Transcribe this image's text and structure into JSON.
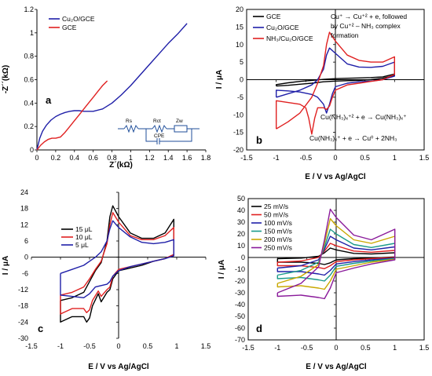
{
  "chart_data": [
    {
      "id": "a",
      "type": "line",
      "panel_label": "a",
      "xlabel": "Z´(kΩ)",
      "ylabel": "-Z´´(kΩ)",
      "xlim": [
        0,
        1.8
      ],
      "ylim": [
        0,
        1.2
      ],
      "xticks": [
        "0",
        "0.2",
        "0.4",
        "0.6",
        "0.8",
        "1",
        "1.2",
        "1.4",
        "1.6",
        "1.8"
      ],
      "yticks": [
        "0",
        "0.2",
        "0.4",
        "0.6",
        "0.8",
        "1",
        "1.2"
      ],
      "legend_position": "top-left",
      "grid": false,
      "circuit_labels": [
        "Rs",
        "Rct",
        "Zw",
        "CPE"
      ],
      "series": [
        {
          "name": "Cu₂O/GCE",
          "color": "#1f1fa8",
          "x": [
            0,
            0.03,
            0.06,
            0.1,
            0.15,
            0.2,
            0.25,
            0.3,
            0.35,
            0.4,
            0.45,
            0.5,
            0.55,
            0.6,
            0.7,
            0.8,
            0.9,
            1.0,
            1.1,
            1.2,
            1.3,
            1.4,
            1.5,
            1.6
          ],
          "y": [
            0,
            0.1,
            0.16,
            0.21,
            0.255,
            0.285,
            0.305,
            0.32,
            0.33,
            0.335,
            0.335,
            0.33,
            0.33,
            0.33,
            0.35,
            0.4,
            0.47,
            0.55,
            0.64,
            0.73,
            0.82,
            0.91,
            0.99,
            1.08
          ]
        },
        {
          "name": "GCE",
          "color": "#e02020",
          "x": [
            0,
            0.04,
            0.08,
            0.12,
            0.16,
            0.2,
            0.25,
            0.3,
            0.35,
            0.4,
            0.45,
            0.5,
            0.55,
            0.6,
            0.65,
            0.7,
            0.75
          ],
          "y": [
            0,
            0.04,
            0.07,
            0.09,
            0.1,
            0.1,
            0.11,
            0.15,
            0.2,
            0.25,
            0.3,
            0.35,
            0.4,
            0.45,
            0.5,
            0.55,
            0.59
          ]
        }
      ]
    },
    {
      "id": "b",
      "type": "line",
      "panel_label": "b",
      "xlabel": "E / V vs Ag/AgCl",
      "ylabel": "I / μA",
      "xlim": [
        -1.5,
        1.5
      ],
      "ylim": [
        -20,
        20
      ],
      "xticks": [
        "-1.5",
        "-1",
        "-0.5",
        "0",
        "0.5",
        "1",
        "1.5"
      ],
      "yticks": [
        "-20",
        "-15",
        "-10",
        "-5",
        "0",
        "5",
        "10",
        "15",
        "20"
      ],
      "legend_position": "top-left",
      "grid": false,
      "annotations": [
        "Cu⁺ → Cu⁺² + e, followed",
        "by Cu⁺² – NH₃ complex",
        "formation",
        "Cu(NH₃)ₓ⁺² + e → Cu(NH₃)ₓ⁺",
        "Cu(NH₃)ₓ⁺ + e → Cu⁰ + 2NH₃"
      ],
      "series": [
        {
          "name": "GCE",
          "color": "#000000",
          "x": [
            -1.0,
            -0.8,
            -0.6,
            -0.4,
            -0.2,
            0,
            0.2,
            0.4,
            0.6,
            0.8,
            1.0,
            1.0,
            0.8,
            0.6,
            0.4,
            0.2,
            0,
            -0.2,
            -0.4,
            -0.6,
            -0.8,
            -1.0,
            -1.0
          ],
          "y": [
            -1.8,
            -1.6,
            -1.3,
            -1.0,
            -0.6,
            -0.4,
            -0.3,
            -0.2,
            0.0,
            0.4,
            1.2,
            1.6,
            0.8,
            0.6,
            0.5,
            0.4,
            0.3,
            0.1,
            -0.2,
            -0.5,
            -0.9,
            -1.4,
            -1.8
          ]
        },
        {
          "name": "Cu₂O/GCE",
          "color": "#1f1fa8",
          "x": [
            -1.0,
            -0.8,
            -0.6,
            -0.4,
            -0.3,
            -0.2,
            -0.15,
            -0.1,
            0.0,
            0.2,
            0.4,
            0.6,
            0.8,
            1.0,
            1.0,
            0.8,
            0.6,
            0.4,
            0.2,
            0.0,
            -0.05,
            -0.1,
            -0.15,
            -0.2,
            -0.3,
            -0.4,
            -0.6,
            -0.8,
            -1.0,
            -1.0
          ],
          "y": [
            -5.0,
            -4.0,
            -3.0,
            -1.5,
            0.0,
            3.0,
            7.0,
            9.0,
            7.5,
            4.5,
            3.6,
            3.5,
            3.8,
            5.0,
            1.0,
            0.0,
            -0.4,
            -0.6,
            -1.0,
            -2.0,
            -4.0,
            -7.0,
            -9.5,
            -7.0,
            -5.0,
            -4.2,
            -3.5,
            -3.2,
            -3.0,
            -5.0
          ]
        },
        {
          "name": "NH₃/Cu₂O/GCE",
          "color": "#e02020",
          "x": [
            -1.0,
            -0.8,
            -0.6,
            -0.4,
            -0.3,
            -0.2,
            -0.15,
            -0.1,
            0.0,
            0.2,
            0.4,
            0.6,
            0.8,
            1.0,
            1.0,
            0.8,
            0.6,
            0.4,
            0.2,
            0.0,
            -0.05,
            -0.1,
            -0.15,
            -0.2,
            -0.3,
            -0.35,
            -0.4,
            -0.45,
            -0.5,
            -0.6,
            -0.8,
            -1.0,
            -1.0
          ],
          "y": [
            -14.0,
            -12.0,
            -9.5,
            -5.0,
            -1.0,
            4.0,
            10.0,
            13.5,
            11.0,
            7.0,
            5.5,
            5.0,
            5.0,
            6.5,
            1.5,
            0.0,
            -0.5,
            -1.0,
            -1.5,
            -3.0,
            -5.0,
            -7.5,
            -8.5,
            -8.0,
            -8.0,
            -11.0,
            -15.5,
            -11.0,
            -8.0,
            -7.0,
            -6.5,
            -6.0,
            -14.0
          ]
        }
      ]
    },
    {
      "id": "c",
      "type": "line",
      "panel_label": "c",
      "xlabel": "E / V vs Ag/AgCl",
      "ylabel": "I / μA",
      "xlim": [
        -1.5,
        1.5
      ],
      "ylim": [
        -30,
        24
      ],
      "xticks": [
        "-1.5",
        "-1",
        "-0.5",
        "0",
        "0.5",
        "1",
        "1.5"
      ],
      "yticks": [
        "-30",
        "-24",
        "-18",
        "-12",
        "-6",
        "0",
        "6",
        "12",
        "18",
        "24"
      ],
      "legend_position": "upper-left",
      "grid": false,
      "series": [
        {
          "name": "15 μL",
          "color": "#000000",
          "x": [
            -1.0,
            -0.8,
            -0.6,
            -0.5,
            -0.4,
            -0.3,
            -0.2,
            -0.15,
            -0.1,
            0.0,
            0.2,
            0.4,
            0.6,
            0.8,
            0.95,
            0.95,
            0.8,
            0.6,
            0.4,
            0.2,
            0.0,
            -0.1,
            -0.15,
            -0.2,
            -0.3,
            -0.35,
            -0.45,
            -0.5,
            -0.55,
            -0.6,
            -0.7,
            -0.8,
            -1.0,
            -1.0
          ],
          "y": [
            -16.0,
            -15.0,
            -13.0,
            -9.0,
            -5.0,
            -2.0,
            6.0,
            15.0,
            19.0,
            15.0,
            9.0,
            7.0,
            7.0,
            9.0,
            14.0,
            1.0,
            -0.5,
            -1.5,
            -3.0,
            -4.0,
            -5.0,
            -8.0,
            -12.0,
            -13.0,
            -16.5,
            -13.5,
            -18.0,
            -22.5,
            -24.0,
            -22.0,
            -22.0,
            -22.0,
            -24.0,
            -16.0
          ]
        },
        {
          "name": "10 μL",
          "color": "#e02020",
          "x": [
            -1.0,
            -0.8,
            -0.6,
            -0.5,
            -0.4,
            -0.3,
            -0.2,
            -0.15,
            -0.1,
            0.0,
            0.2,
            0.4,
            0.6,
            0.8,
            0.95,
            0.95,
            0.8,
            0.6,
            0.4,
            0.2,
            0.0,
            -0.1,
            -0.15,
            -0.2,
            -0.3,
            -0.35,
            -0.45,
            -0.5,
            -0.55,
            -0.6,
            -0.8,
            -1.0,
            -1.0
          ],
          "y": [
            -14.0,
            -13.0,
            -11.0,
            -8.0,
            -4.5,
            -1.5,
            5.0,
            12.0,
            16.5,
            13.0,
            8.0,
            6.5,
            6.5,
            8.0,
            11.0,
            1.0,
            -0.5,
            -1.5,
            -2.5,
            -3.5,
            -4.5,
            -7.0,
            -11.0,
            -12.0,
            -14.5,
            -12.5,
            -16.0,
            -19.5,
            -20.5,
            -19.0,
            -19.0,
            -21.0,
            -14.0
          ]
        },
        {
          "name": "5 μL",
          "color": "#1f1fa8",
          "x": [
            -1.0,
            -0.8,
            -0.6,
            -0.5,
            -0.4,
            -0.3,
            -0.2,
            -0.15,
            -0.1,
            0.0,
            0.2,
            0.4,
            0.6,
            0.8,
            0.95,
            0.95,
            0.8,
            0.6,
            0.4,
            0.2,
            0.0,
            -0.1,
            -0.15,
            -0.2,
            -0.3,
            -0.4,
            -0.5,
            -0.6,
            -0.8,
            -1.0,
            -1.0
          ],
          "y": [
            -6.0,
            -4.5,
            -3.0,
            -1.5,
            0.0,
            2.0,
            6.0,
            10.5,
            13.5,
            11.0,
            7.5,
            5.5,
            5.0,
            5.5,
            6.5,
            0.5,
            -0.5,
            -1.5,
            -2.5,
            -3.5,
            -5.0,
            -7.0,
            -9.0,
            -10.0,
            -10.5,
            -11.0,
            -13.5,
            -15.0,
            -14.5,
            -14.0,
            -6.0
          ]
        }
      ]
    },
    {
      "id": "d",
      "type": "line",
      "panel_label": "d",
      "xlabel": "E / V vs Ag/AgCl",
      "ylabel": "I / μA",
      "xlim": [
        -1.5,
        1.5
      ],
      "ylim": [
        -70,
        50
      ],
      "xticks": [
        "-1.5",
        "-1",
        "-0.5",
        "0",
        "0.5",
        "1",
        "1.5"
      ],
      "yticks": [
        "-70",
        "-60",
        "-50",
        "-40",
        "-30",
        "-20",
        "-10",
        "0",
        "10",
        "20",
        "30",
        "40",
        "50"
      ],
      "legend_position": "top-left",
      "grid": false,
      "series": [
        {
          "name": "25 mV/s",
          "color": "#000000",
          "x": [
            -1.0,
            -0.6,
            -0.3,
            -0.2,
            -0.1,
            0.0,
            0.3,
            0.6,
            1.0,
            1.0,
            0.6,
            0.3,
            0.0,
            -0.1,
            -0.2,
            -0.3,
            -0.6,
            -1.0,
            -1.0
          ],
          "y": [
            -1.0,
            -0.5,
            1.0,
            4.0,
            8.0,
            6.5,
            3.5,
            3.0,
            4.0,
            0.5,
            -0.5,
            -1.0,
            -2.0,
            -4.5,
            -6.0,
            -5.0,
            -4.0,
            -4.0,
            -1.0
          ]
        },
        {
          "name": "50 mV/s",
          "color": "#e02020",
          "x": [
            -1.0,
            -0.6,
            -0.3,
            -0.2,
            -0.1,
            0.0,
            0.3,
            0.6,
            1.0,
            1.0,
            0.6,
            0.3,
            0.0,
            -0.1,
            -0.2,
            -0.3,
            -0.6,
            -1.0,
            -1.0
          ],
          "y": [
            -4.0,
            -3.0,
            0.0,
            5.5,
            12.0,
            10.0,
            5.5,
            4.5,
            6.0,
            0.0,
            -1.0,
            -2.0,
            -3.5,
            -7.0,
            -9.5,
            -8.5,
            -7.0,
            -7.0,
            -4.0
          ]
        },
        {
          "name": "100 mV/s",
          "color": "#1f1fa8",
          "x": [
            -1.0,
            -0.6,
            -0.3,
            -0.2,
            -0.1,
            0.0,
            0.3,
            0.6,
            1.0,
            1.0,
            0.6,
            0.3,
            0.0,
            -0.1,
            -0.2,
            -0.3,
            -0.6,
            -1.0,
            -1.0
          ],
          "y": [
            -9.0,
            -7.0,
            -2.0,
            7.0,
            18.0,
            15.0,
            8.0,
            6.5,
            9.0,
            -0.5,
            -2.0,
            -3.5,
            -5.5,
            -11.0,
            -15.0,
            -14.0,
            -12.0,
            -12.0,
            -9.0
          ]
        },
        {
          "name": "150 mV/s",
          "color": "#1a9a8a",
          "x": [
            -1.0,
            -0.6,
            -0.3,
            -0.2,
            -0.1,
            0.0,
            0.3,
            0.6,
            1.0,
            1.0,
            0.6,
            0.3,
            0.0,
            -0.1,
            -0.2,
            -0.3,
            -0.6,
            -1.0,
            -1.0
          ],
          "y": [
            -15.0,
            -11.0,
            -4.0,
            9.0,
            24.0,
            20.0,
            11.0,
            8.5,
            12.0,
            -1.0,
            -3.0,
            -5.0,
            -7.5,
            -15.0,
            -20.0,
            -19.0,
            -17.0,
            -18.0,
            -15.0
          ]
        },
        {
          "name": "200 mV/s",
          "color": "#c9a800",
          "x": [
            -1.0,
            -0.6,
            -0.3,
            -0.2,
            -0.1,
            0.0,
            0.3,
            0.6,
            1.0,
            1.0,
            0.6,
            0.3,
            0.0,
            -0.1,
            -0.2,
            -0.3,
            -0.6,
            -1.0,
            -1.0
          ],
          "y": [
            -22.0,
            -16.0,
            -6.0,
            12.0,
            33.0,
            27.0,
            15.0,
            12.0,
            18.0,
            -1.5,
            -4.0,
            -7.0,
            -10.0,
            -20.0,
            -27.0,
            -26.0,
            -24.0,
            -25.0,
            -22.0
          ]
        },
        {
          "name": "250 mV/s",
          "color": "#8a1a9a",
          "x": [
            -1.0,
            -0.6,
            -0.3,
            -0.2,
            -0.1,
            0.0,
            0.3,
            0.6,
            1.0,
            1.0,
            0.6,
            0.3,
            0.0,
            -0.1,
            -0.2,
            -0.3,
            -0.6,
            -1.0,
            -1.0
          ],
          "y": [
            -30.0,
            -22.0,
            -8.0,
            15.0,
            41.0,
            34.0,
            19.0,
            15.0,
            24.0,
            -2.0,
            -5.5,
            -9.0,
            -13.0,
            -26.0,
            -35.0,
            -34.0,
            -32.0,
            -33.0,
            -30.0
          ]
        }
      ]
    }
  ]
}
